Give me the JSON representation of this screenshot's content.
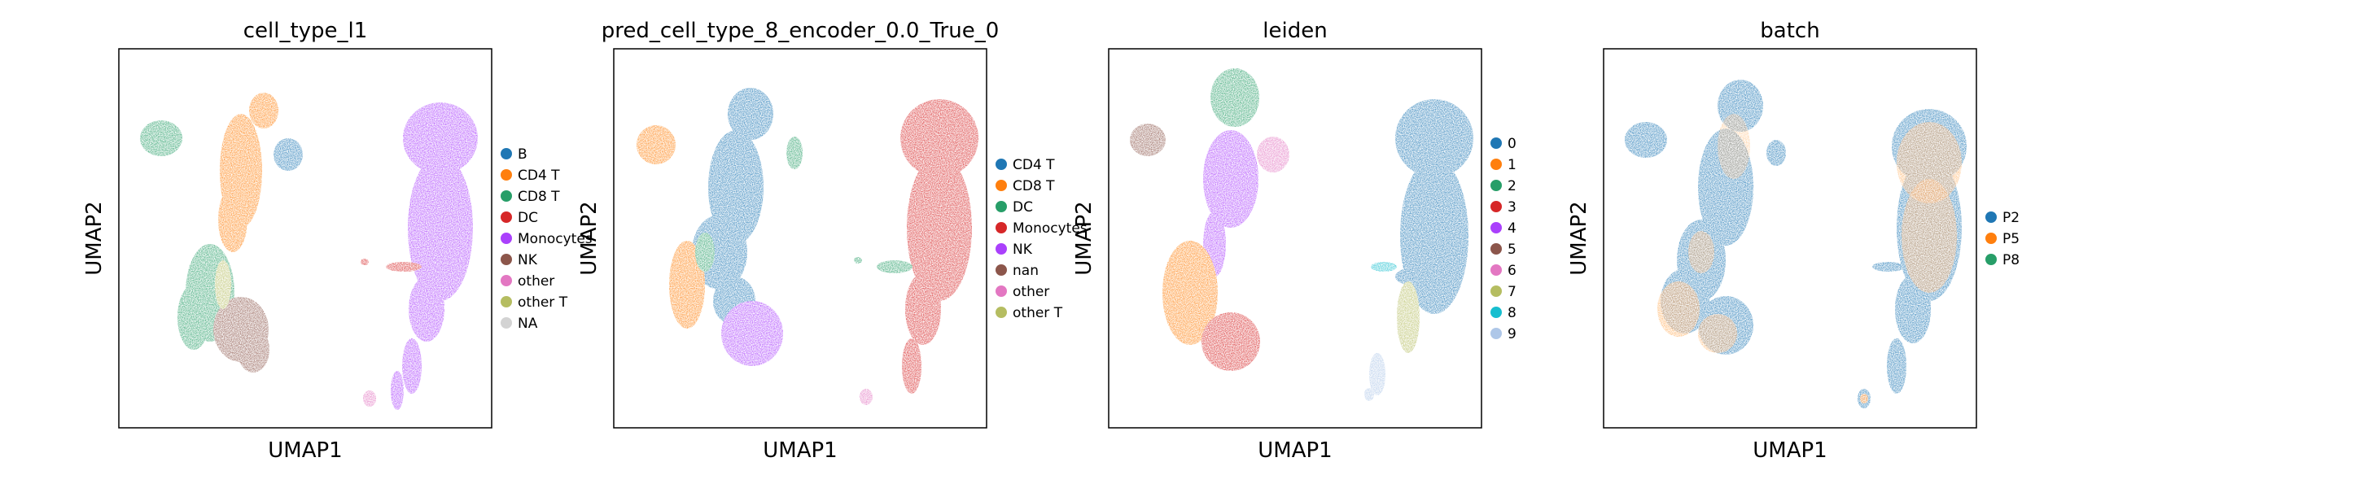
{
  "figure": {
    "kind": "UMAP scatter panels"
  },
  "chart_data": [
    {
      "type": "scatter",
      "title": "cell_type_l1",
      "xlabel": "UMAP1",
      "ylabel": "UMAP2",
      "grid": false,
      "legend_placement": "right",
      "series": [
        {
          "name": "B",
          "color": "#1f77b4"
        },
        {
          "name": "CD4 T",
          "color": "#ff7f0e"
        },
        {
          "name": "CD8 T",
          "color": "#279e68"
        },
        {
          "name": "DC",
          "color": "#d62728"
        },
        {
          "name": "Monocytes",
          "color": "#aa40fc"
        },
        {
          "name": "NK",
          "color": "#8c564b"
        },
        {
          "name": "other",
          "color": "#e377c2"
        },
        {
          "name": "other T",
          "color": "#b5bd61"
        },
        {
          "name": "NA",
          "color": "#d3d3d3"
        }
      ]
    },
    {
      "type": "scatter",
      "title": "pred_cell_type_8_encoder_0.0_True_0",
      "xlabel": "UMAP1",
      "ylabel": "UMAP2",
      "grid": false,
      "legend_placement": "right",
      "series": [
        {
          "name": "CD4 T",
          "color": "#1f77b4"
        },
        {
          "name": "CD8 T",
          "color": "#ff7f0e"
        },
        {
          "name": "DC",
          "color": "#279e68"
        },
        {
          "name": "Monocytes",
          "color": "#d62728"
        },
        {
          "name": "NK",
          "color": "#aa40fc"
        },
        {
          "name": "nan",
          "color": "#8c564b"
        },
        {
          "name": "other",
          "color": "#e377c2"
        },
        {
          "name": "other T",
          "color": "#b5bd61"
        }
      ]
    },
    {
      "type": "scatter",
      "title": "leiden",
      "xlabel": "UMAP1",
      "ylabel": "UMAP2",
      "grid": false,
      "legend_placement": "right",
      "series": [
        {
          "name": "0",
          "color": "#1f77b4"
        },
        {
          "name": "1",
          "color": "#ff7f0e"
        },
        {
          "name": "2",
          "color": "#279e68"
        },
        {
          "name": "3",
          "color": "#d62728"
        },
        {
          "name": "4",
          "color": "#aa40fc"
        },
        {
          "name": "5",
          "color": "#8c564b"
        },
        {
          "name": "6",
          "color": "#e377c2"
        },
        {
          "name": "7",
          "color": "#b5bd61"
        },
        {
          "name": "8",
          "color": "#17becf"
        },
        {
          "name": "9",
          "color": "#aec7e8"
        }
      ]
    },
    {
      "type": "scatter",
      "title": "batch",
      "xlabel": "UMAP1",
      "ylabel": "UMAP2",
      "grid": false,
      "legend_placement": "right",
      "series": [
        {
          "name": "P2",
          "color": "#1f77b4"
        },
        {
          "name": "P5",
          "color": "#ff7f0e"
        },
        {
          "name": "P8",
          "color": "#279e68"
        }
      ]
    }
  ]
}
